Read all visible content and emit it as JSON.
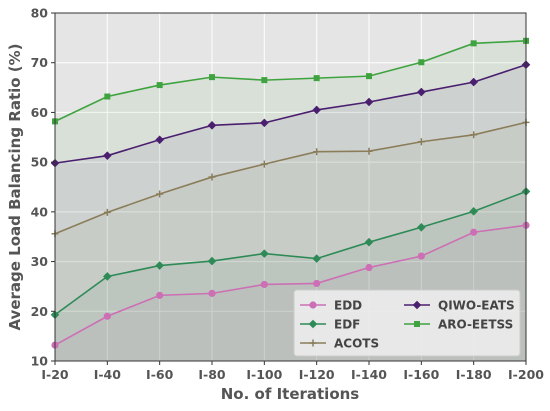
{
  "chart_data": {
    "type": "area",
    "title": "",
    "xlabel": "No. of Iterations",
    "ylabel": "Average Load Balancing Ratio (%)",
    "categories": [
      "I-20",
      "I-40",
      "I-60",
      "I-80",
      "I-100",
      "I-120",
      "I-140",
      "I-160",
      "I-180",
      "I-200"
    ],
    "ylim": [
      10,
      80
    ],
    "yticks": [
      10,
      20,
      30,
      40,
      50,
      60,
      70,
      80
    ],
    "grid": true,
    "legend_position": "bottom-right",
    "series": [
      {
        "name": "EDD",
        "color": "#cc6fb5",
        "marker": "circle",
        "values": [
          13.2,
          19.0,
          23.2,
          23.6,
          25.4,
          25.6,
          28.8,
          31.1,
          35.9,
          37.3
        ]
      },
      {
        "name": "EDF",
        "color": "#2e8b57",
        "marker": "diamond",
        "values": [
          19.3,
          27.0,
          29.2,
          30.1,
          31.6,
          30.6,
          33.9,
          36.9,
          40.1,
          44.1
        ]
      },
      {
        "name": "ACOTS",
        "color": "#8b7d5a",
        "marker": "plus",
        "values": [
          35.6,
          39.9,
          43.6,
          47.0,
          49.6,
          52.1,
          52.2,
          54.1,
          55.5,
          58.0
        ]
      },
      {
        "name": "QIWO-EATS",
        "color": "#4b1f6f",
        "marker": "diamond",
        "values": [
          49.8,
          51.3,
          54.5,
          57.4,
          57.9,
          60.5,
          62.1,
          64.1,
          66.1,
          69.6
        ]
      },
      {
        "name": "ARO-EETSS",
        "color": "#3fa33f",
        "marker": "square",
        "values": [
          58.2,
          63.2,
          65.5,
          67.1,
          66.5,
          66.9,
          67.3,
          70.1,
          73.9,
          74.4
        ]
      }
    ]
  }
}
